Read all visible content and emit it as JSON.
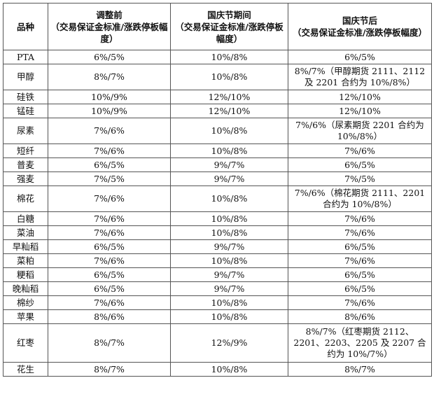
{
  "table": {
    "headers": [
      "品种",
      "调整前\n（交易保证金标准/涨跌停板幅度）",
      "国庆节期间\n（交易保证金标准/涨跌停板幅度）",
      "国庆节后\n（交易保证金标准/涨跌停板幅度）"
    ],
    "rows": [
      {
        "name": "PTA",
        "before": "6%/5%",
        "during": "10%/8%",
        "after": "6%/5%"
      },
      {
        "name": "甲醇",
        "before": "8%/7%",
        "during": "10%/8%",
        "after": "8%/7%（甲醇期货 2111、2112 及 2201 合约为 10%/8%）"
      },
      {
        "name": "硅铁",
        "before": "10%/9%",
        "during": "12%/10%",
        "after": "12%/10%"
      },
      {
        "name": "锰硅",
        "before": "10%/9%",
        "during": "12%/10%",
        "after": "12%/10%"
      },
      {
        "name": "尿素",
        "before": "7%/6%",
        "during": "10%/8%",
        "after": "7%/6%（尿素期货 2201 合约为 10%/8%）"
      },
      {
        "name": "短纤",
        "before": "7%/6%",
        "during": "10%/8%",
        "after": "7%/6%"
      },
      {
        "name": "普麦",
        "before": "6%/5%",
        "during": "9%/7%",
        "after": "6%/5%"
      },
      {
        "name": "强麦",
        "before": "7%/5%",
        "during": "9%/7%",
        "after": "7%/5%"
      },
      {
        "name": "棉花",
        "before": "7%/6%",
        "during": "10%/8%",
        "after": "7%/6%（棉花期货 2111、2201 合约为 10%/8%）"
      },
      {
        "name": "白糖",
        "before": "7%/6%",
        "during": "10%/8%",
        "after": "7%/6%"
      },
      {
        "name": "菜油",
        "before": "7%/6%",
        "during": "10%/8%",
        "after": "7%/6%"
      },
      {
        "name": "早籼稻",
        "before": "6%/5%",
        "during": "9%/7%",
        "after": "6%/5%"
      },
      {
        "name": "菜粕",
        "before": "7%/6%",
        "during": "10%/8%",
        "after": "7%/6%"
      },
      {
        "name": "粳稻",
        "before": "6%/5%",
        "during": "9%/7%",
        "after": "6%/5%"
      },
      {
        "name": "晚籼稻",
        "before": "6%/5%",
        "during": "9%/7%",
        "after": "6%/5%"
      },
      {
        "name": "棉纱",
        "before": "7%/6%",
        "during": "10%/8%",
        "after": "7%/6%"
      },
      {
        "name": "苹果",
        "before": "8%/6%",
        "during": "10%/8%",
        "after": "8%/6%"
      },
      {
        "name": "红枣",
        "before": "8%/7%",
        "during": "12%/9%",
        "after": "8%/7%（红枣期货 2112、2201、2203、2205 及 2207 合约为 10%/7%）"
      },
      {
        "name": "花生",
        "before": "8%/7%",
        "during": "10%/8%",
        "after": "8%/7%"
      }
    ]
  }
}
